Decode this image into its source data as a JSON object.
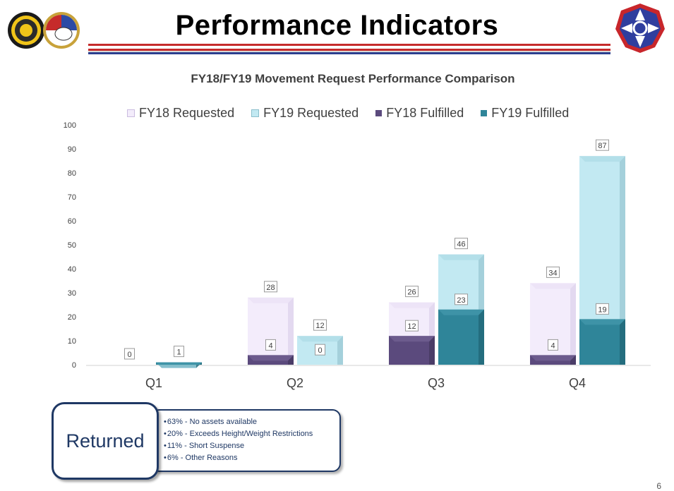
{
  "header": {
    "title": "Performance Indicators"
  },
  "colors": {
    "fy18_requested": "#f3ecfb",
    "fy19_requested": "#c2e9f2",
    "fy18_fulfilled": "#5b4a7d",
    "fy19_fulfilled": "#2f8599"
  },
  "chart_data": {
    "type": "bar",
    "title": "FY18/FY19 Movement Request Performance Comparison",
    "categories": [
      "Q1",
      "Q2",
      "Q3",
      "Q4"
    ],
    "legend_position": "top",
    "ylim": [
      0,
      100
    ],
    "yticks": [
      0,
      10,
      20,
      30,
      40,
      50,
      60,
      70,
      80,
      90,
      100
    ],
    "grid": false,
    "series": [
      {
        "name": "FY18 Requested",
        "values": [
          0,
          28,
          26,
          34
        ]
      },
      {
        "name": "FY19 Requested",
        "values": [
          1,
          12,
          46,
          87
        ]
      },
      {
        "name": "FY18 Fulfilled",
        "values": [
          0,
          4,
          12,
          4
        ]
      },
      {
        "name": "FY19 Fulfilled",
        "values": [
          1,
          0,
          23,
          19
        ]
      }
    ]
  },
  "returned": {
    "label": "Returned",
    "reasons": [
      "63% - No assets available",
      "20% - Exceeds Height/Weight Restrictions",
      "11% - Short Suspense",
      "6% - Other Reasons"
    ]
  },
  "footer": {
    "page_number": "6"
  }
}
